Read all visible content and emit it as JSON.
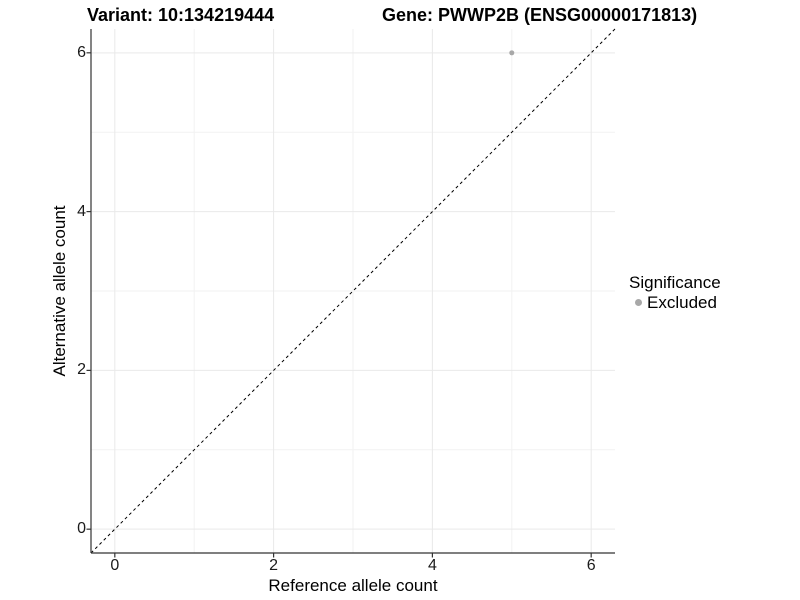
{
  "header": {
    "variant_title": "Variant: 10:134219444",
    "gene_title": "Gene: PWWP2B (ENSG00000171813)"
  },
  "chart_data": {
    "type": "scatter",
    "title_left": "Variant: 10:134219444",
    "title_right": "Gene: PWWP2B (ENSG00000171813)",
    "xlabel": "Reference allele count",
    "ylabel": "Alternative allele count",
    "xlim": [
      -0.3,
      6.3
    ],
    "ylim": [
      -0.3,
      6.3
    ],
    "x_ticks": [
      0,
      2,
      4,
      6
    ],
    "y_ticks": [
      0,
      2,
      4,
      6
    ],
    "x_tick_labels": [
      "0",
      "2",
      "4",
      "6"
    ],
    "y_tick_labels": [
      "0",
      "2",
      "4",
      "6"
    ],
    "x_minor_gridlines": [
      1,
      3,
      5
    ],
    "y_minor_gridlines": [
      1,
      3,
      5
    ],
    "grid": "major+minor",
    "points": [
      {
        "x": 5,
        "y": 6,
        "series": "Excluded",
        "color": "#a8a8a8",
        "radius": 2.5
      }
    ],
    "reference_line": {
      "type": "identity",
      "style": "dashed",
      "color": "#000000"
    },
    "legend": {
      "title": "Significance",
      "position": "right",
      "items": [
        {
          "label": "Excluded",
          "color": "#a8a8a8",
          "marker": "circle"
        }
      ]
    }
  },
  "colors": {
    "background": "#ffffff",
    "grid_major": "#e9e9e9",
    "grid_minor": "#f2f2f2",
    "axis": "#333333",
    "tick_text": "#1a1a1a",
    "title_text": "#000000",
    "point": "#a8a8a8",
    "reference_line": "#000000"
  }
}
